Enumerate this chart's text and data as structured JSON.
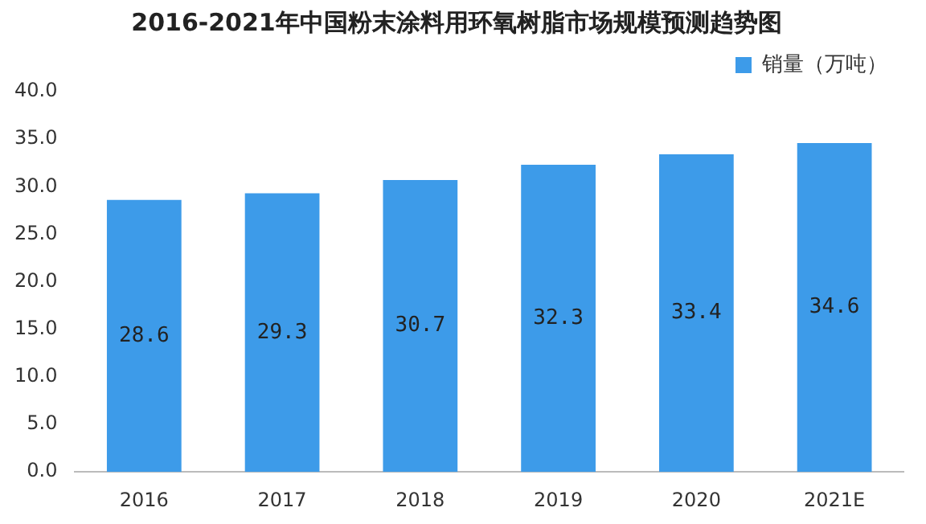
{
  "chart_data": {
    "type": "bar",
    "title": "2016-2021年中国粉末涂料用环氧树脂市场规模预测趋势图",
    "categories": [
      "2016",
      "2017",
      "2018",
      "2019",
      "2020",
      "2021E"
    ],
    "series": [
      {
        "name": "销量（万吨）",
        "color": "#3d9be9",
        "values": [
          28.6,
          29.3,
          30.7,
          32.3,
          33.4,
          34.6
        ]
      }
    ],
    "ylim": [
      0,
      40
    ],
    "yticks": [
      {
        "value": 0,
        "label": "0.0"
      },
      {
        "value": 5,
        "label": "5.0"
      },
      {
        "value": 10,
        "label": "10.0"
      },
      {
        "value": 15,
        "label": "15.0"
      },
      {
        "value": 20,
        "label": "20.0"
      },
      {
        "value": 25,
        "label": "25.0"
      },
      {
        "value": 30,
        "label": "30.0"
      },
      {
        "value": 35,
        "label": "35.0"
      },
      {
        "value": 40,
        "label": "40.0"
      }
    ],
    "grid": false,
    "legend": "top right",
    "data_labels": true
  }
}
